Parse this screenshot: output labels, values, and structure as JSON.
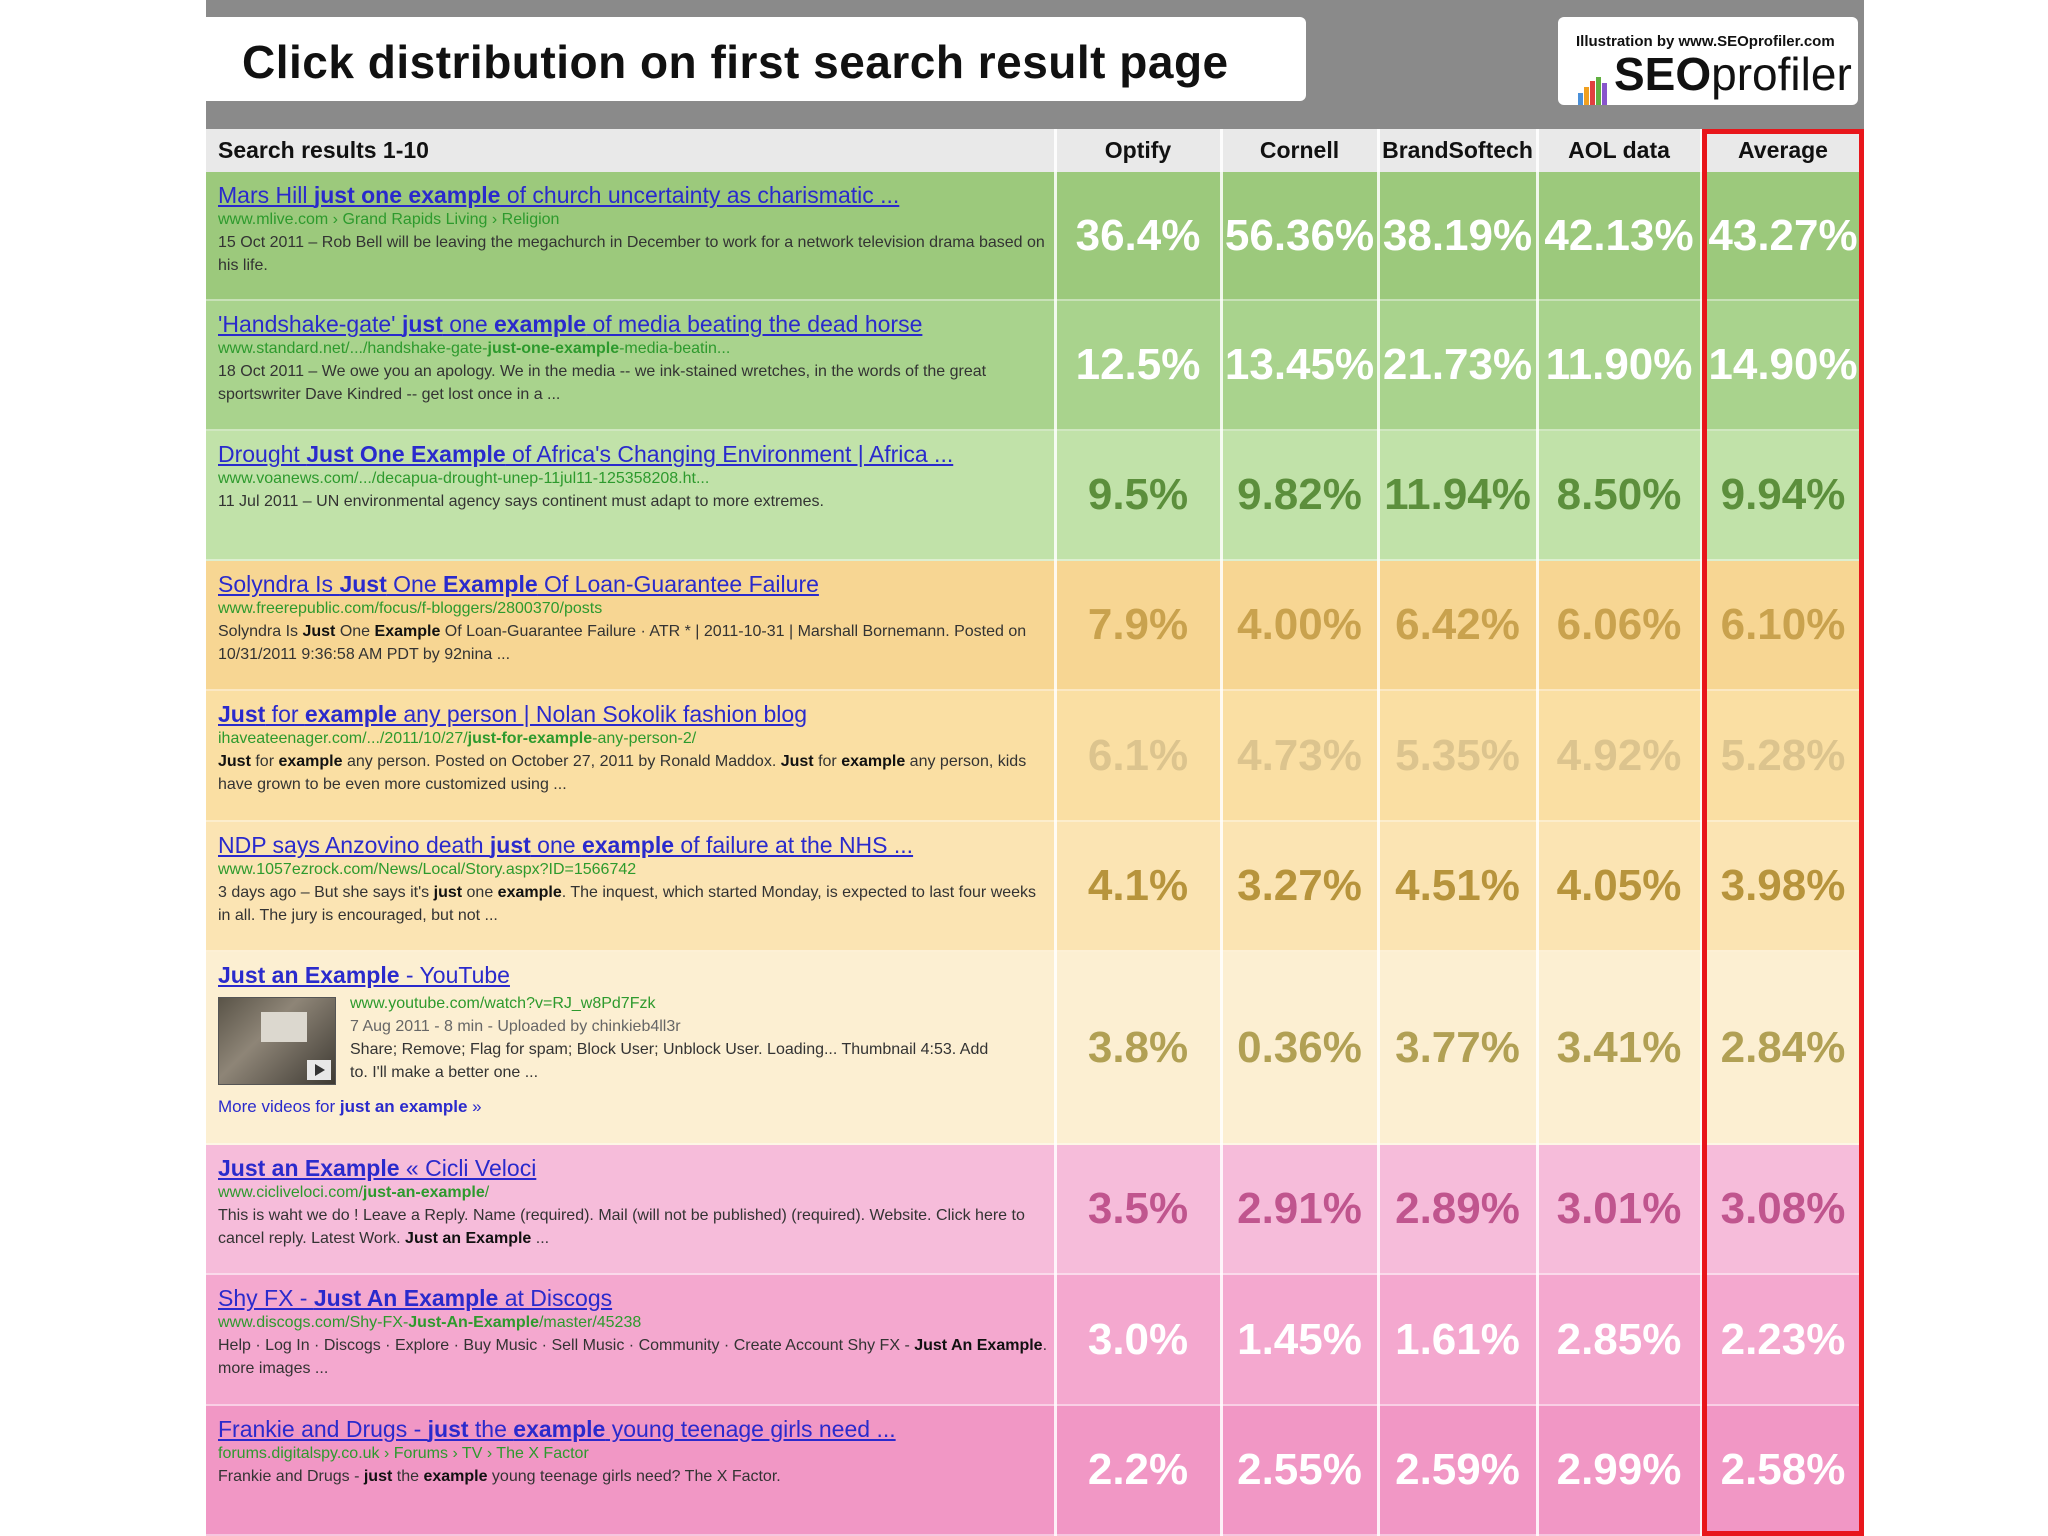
{
  "title": "Click distribution on first search result page",
  "logo": {
    "credit": "Illustration by www.SEOprofiler.com",
    "word_bold": "SEO",
    "word_light": "profiler"
  },
  "chart_data": {
    "type": "table",
    "columns": [
      "Search results 1-10",
      "Optify",
      "Cornell",
      "BrandSoftech",
      "AOL data",
      "Average"
    ],
    "highlighted_column": "Average",
    "rows": [
      {
        "title_html": "Mars Hill <b>just one example</b> of church uncertainty as charismatic ...",
        "url": "www.mlive.com › Grand Rapids Living › Religion",
        "snippet_html": "15 Oct 2011 – Rob Bell will be leaving the megachurch in December to work for a network television drama based on his life.",
        "values": [
          "36.4%",
          "56.36%",
          "38.19%",
          "42.13%",
          "43.27%"
        ]
      },
      {
        "title_html": "'Handshake-gate' <b>just</b> one <b>example</b> of media beating the dead horse",
        "url": "www.standard.net/.../handshake-gate-<b>just-one-example</b>-media-beatin...",
        "snippet_html": "18 Oct 2011 – We owe you an apology. We in the media -- we ink-stained wretches, in the words of the great sportswriter Dave Kindred -- get lost once in a ...",
        "values": [
          "12.5%",
          "13.45%",
          "21.73%",
          "11.90%",
          "14.90%"
        ]
      },
      {
        "title_html": "Drought <b>Just One Example</b> of Africa's Changing Environment | Africa ...",
        "url": "www.voanews.com/.../decapua-drought-unep-11jul11-125358208.ht...",
        "snippet_html": "11 Jul 2011 – UN environmental agency says continent must adapt to more extremes.",
        "values": [
          "9.5%",
          "9.82%",
          "11.94%",
          "8.50%",
          "9.94%"
        ]
      },
      {
        "title_html": "Solyndra Is <b>Just</b> One <b>Example</b> Of Loan-Guarantee Failure",
        "url": "www.freerepublic.com/focus/f-bloggers/2800370/posts",
        "snippet_html": "Solyndra Is <b>Just</b> One <b>Example</b> Of Loan-Guarantee Failure · ATR * | 2011-10-31 | Marshall Bornemann. Posted on 10/31/2011 9:36:58 AM PDT by 92nina ...",
        "values": [
          "7.9%",
          "4.00%",
          "6.42%",
          "6.06%",
          "6.10%"
        ]
      },
      {
        "title_html": "<b>Just</b> for <b>example</b> any person | Nolan Sokolik fashion blog",
        "url": "ihaveateenager.com/.../2011/10/27/<b>just-for-example</b>-any-person-2/",
        "snippet_html": "<b>Just</b> for <b>example</b> any person. Posted on October 27, 2011 by Ronald Maddox. <b>Just</b> for <b>example</b> any person, kids have grown to be even more customized using ...",
        "values": [
          "6.1%",
          "4.73%",
          "5.35%",
          "4.92%",
          "5.28%"
        ]
      },
      {
        "title_html": "NDP says Anzovino death <b>just</b> one <b>example</b> of failure at the NHS ...",
        "url": "www.1057ezrock.com/News/Local/Story.aspx?ID=1566742",
        "snippet_html": "3 days ago – But she says it's <b>just</b> one <b>example</b>. The inquest, which started Monday, is expected to last four weeks in all. The jury is encouraged, but not ...",
        "values": [
          "4.1%",
          "3.27%",
          "4.51%",
          "4.05%",
          "3.98%"
        ]
      },
      {
        "title_html": "<b>Just an Example</b> - YouTube",
        "url": "www.youtube.com/watch?v=RJ_w8Pd7Fzk",
        "video_meta": "7 Aug 2011 - 8 min - Uploaded by chinkieb4ll3r",
        "snippet_html": "Share; Remove; Flag for spam; Block User; Unblock User. Loading... Thumbnail 4:53. Add to. I'll make a better one ...",
        "more_html": "More videos for <b>just an example</b> »",
        "values": [
          "3.8%",
          "0.36%",
          "3.77%",
          "3.41%",
          "2.84%"
        ]
      },
      {
        "title_html": "<b>Just an Example</b> « Cicli Veloci",
        "url": "www.cicliveloci.com/<b>just-an-example</b>/",
        "snippet_html": "This is waht we do ! Leave a Reply. Name (required). Mail (will not be published) (required). Website. Click here to cancel reply. Latest Work. <b>Just an Example</b> ...",
        "values": [
          "3.5%",
          "2.91%",
          "2.89%",
          "3.01%",
          "3.08%"
        ]
      },
      {
        "title_html": "Shy FX - <b>Just An Example</b> at Discogs",
        "url": "www.discogs.com/Shy-FX-<b>Just-An-Example</b>/master/45238",
        "snippet_html": "Help · Log In · Discogs · Explore · Buy Music · Sell Music · Community · Create Account Shy FX - <b>Just An Example</b>. more images ...",
        "values": [
          "3.0%",
          "1.45%",
          "1.61%",
          "2.85%",
          "2.23%"
        ]
      },
      {
        "title_html": "Frankie and Drugs - <b>just</b> the <b>example</b> young teenage girls need ...",
        "url": "forums.digitalspy.co.uk › Forums › TV › The X Factor",
        "snippet_html": "Frankie and Drugs - <b>just</b> the <b>example</b> young teenage girls need? The X Factor.",
        "values": [
          "2.2%",
          "2.55%",
          "2.59%",
          "2.99%",
          "2.58%"
        ]
      }
    ]
  },
  "row_colors": {
    "backgrounds": [
      "#9cc97c",
      "#a9d38d",
      "#c1e2a9",
      "#f7d693",
      "#fadfa3",
      "#fbe4b3",
      "#fcefd2",
      "#f6bcda",
      "#f4a8cf",
      "#f197c5"
    ],
    "values": [
      "#ffffff",
      "#ffffff",
      "#5c8f3c",
      "#c9a24e",
      "#dcc48e",
      "#b7943c",
      "#b1a054",
      "#c0558e",
      "#ffffff",
      "#ffffff"
    ]
  },
  "logo_bar_colors": [
    "#4a90d9",
    "#f0a020",
    "#e04040",
    "#60b040",
    "#8855cc"
  ]
}
